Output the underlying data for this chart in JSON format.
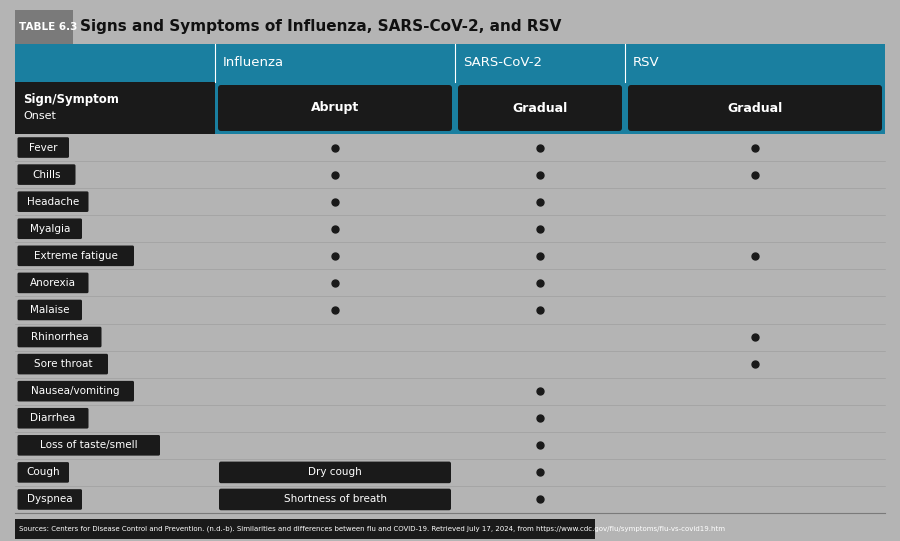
{
  "title_prefix": "TABLE 6.3",
  "title_text": "Signs and Symptoms of Influenza, SARS-CoV-2, and RSV",
  "col_headers": [
    "Influenza",
    "SARS-CoV-2",
    "RSV"
  ],
  "onset_vals": [
    "Abrupt",
    "Gradual",
    "Gradual"
  ],
  "rows": [
    {
      "symptom": "Fever",
      "influenza": true,
      "sars": true,
      "rsv": true
    },
    {
      "symptom": "Chills",
      "influenza": true,
      "sars": true,
      "rsv": true
    },
    {
      "symptom": "Headache",
      "influenza": true,
      "sars": true,
      "rsv": false
    },
    {
      "symptom": "Myalgia",
      "influenza": true,
      "sars": true,
      "rsv": false
    },
    {
      "symptom": "Extreme fatigue",
      "influenza": true,
      "sars": true,
      "rsv": true
    },
    {
      "symptom": "Anorexia",
      "influenza": true,
      "sars": true,
      "rsv": false
    },
    {
      "symptom": "Malaise",
      "influenza": true,
      "sars": true,
      "rsv": false
    },
    {
      "symptom": "Rhinorrhea",
      "influenza": false,
      "sars": false,
      "rsv": true
    },
    {
      "symptom": "Sore throat",
      "influenza": false,
      "sars": false,
      "rsv": true
    },
    {
      "symptom": "Nausea/vomiting",
      "influenza": false,
      "sars": true,
      "rsv": false
    },
    {
      "symptom": "Diarrhea",
      "influenza": false,
      "sars": true,
      "rsv": false
    },
    {
      "symptom": "Loss of taste/smell",
      "influenza": false,
      "sars": true,
      "rsv": false
    },
    {
      "symptom": "Cough",
      "influenza": "Dry cough",
      "sars": true,
      "rsv": false
    },
    {
      "symptom": "Dyspnea",
      "influenza": "Shortness of breath",
      "sars": true,
      "rsv": false
    }
  ],
  "footer": "Sources: Centers for Disease Control and Prevention. (n.d.-b). Similarities and differences between flu and COVID-19. Retrieved July 17, 2024, from https://www.cdc.gov/flu/symptoms/flu-vs-covid19.htm",
  "color_teal": "#1a7fa0",
  "color_dark": "#1a1a1a",
  "color_gray_bg": "#b4b4b4",
  "color_gray_title_box": "#7a7a7a",
  "color_white": "#ffffff",
  "color_black": "#111111",
  "color_bg": "#b4b4b4"
}
